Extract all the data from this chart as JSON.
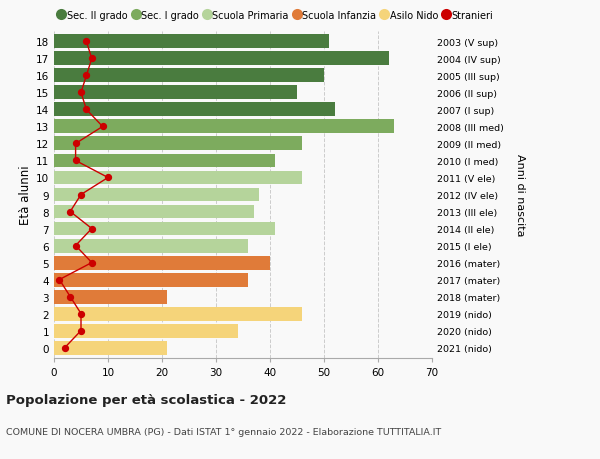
{
  "ages": [
    18,
    17,
    16,
    15,
    14,
    13,
    12,
    11,
    10,
    9,
    8,
    7,
    6,
    5,
    4,
    3,
    2,
    1,
    0
  ],
  "right_labels": [
    "2003 (V sup)",
    "2004 (IV sup)",
    "2005 (III sup)",
    "2006 (II sup)",
    "2007 (I sup)",
    "2008 (III med)",
    "2009 (II med)",
    "2010 (I med)",
    "2011 (V ele)",
    "2012 (IV ele)",
    "2013 (III ele)",
    "2014 (II ele)",
    "2015 (I ele)",
    "2016 (mater)",
    "2017 (mater)",
    "2018 (mater)",
    "2019 (nido)",
    "2020 (nido)",
    "2021 (nido)"
  ],
  "bar_values": [
    51,
    62,
    50,
    45,
    52,
    63,
    46,
    41,
    46,
    38,
    37,
    41,
    36,
    40,
    36,
    21,
    46,
    34,
    21
  ],
  "bar_colors": [
    "#4a7c3f",
    "#4a7c3f",
    "#4a7c3f",
    "#4a7c3f",
    "#4a7c3f",
    "#7dab5e",
    "#7dab5e",
    "#7dab5e",
    "#b5d49b",
    "#b5d49b",
    "#b5d49b",
    "#b5d49b",
    "#b5d49b",
    "#e07b39",
    "#e07b39",
    "#e07b39",
    "#f5d47a",
    "#f5d47a",
    "#f5d47a"
  ],
  "stranieri": [
    6,
    7,
    6,
    5,
    6,
    9,
    4,
    4,
    10,
    5,
    3,
    7,
    4,
    7,
    1,
    3,
    5,
    5,
    2
  ],
  "stranieri_color": "#cc0000",
  "legend_labels": [
    "Sec. II grado",
    "Sec. I grado",
    "Scuola Primaria",
    "Scuola Infanzia",
    "Asilo Nido",
    "Stranieri"
  ],
  "legend_colors": [
    "#4a7c3f",
    "#7dab5e",
    "#b5d49b",
    "#e07b39",
    "#f5d47a",
    "#cc0000"
  ],
  "title_bold": "Popolazione per età scolastica - 2022",
  "title_sub": "COMUNE DI NOCERA UMBRA (PG) - Dati ISTAT 1° gennaio 2022 - Elaborazione TUTTITALIA.IT",
  "ylabel_left": "Età alunni",
  "ylabel_right": "Anni di nascita",
  "xlim": [
    0,
    70
  ],
  "xticks": [
    0,
    10,
    20,
    30,
    40,
    50,
    60,
    70
  ],
  "bg_color": "#f9f9f9",
  "grid_color": "#cccccc"
}
